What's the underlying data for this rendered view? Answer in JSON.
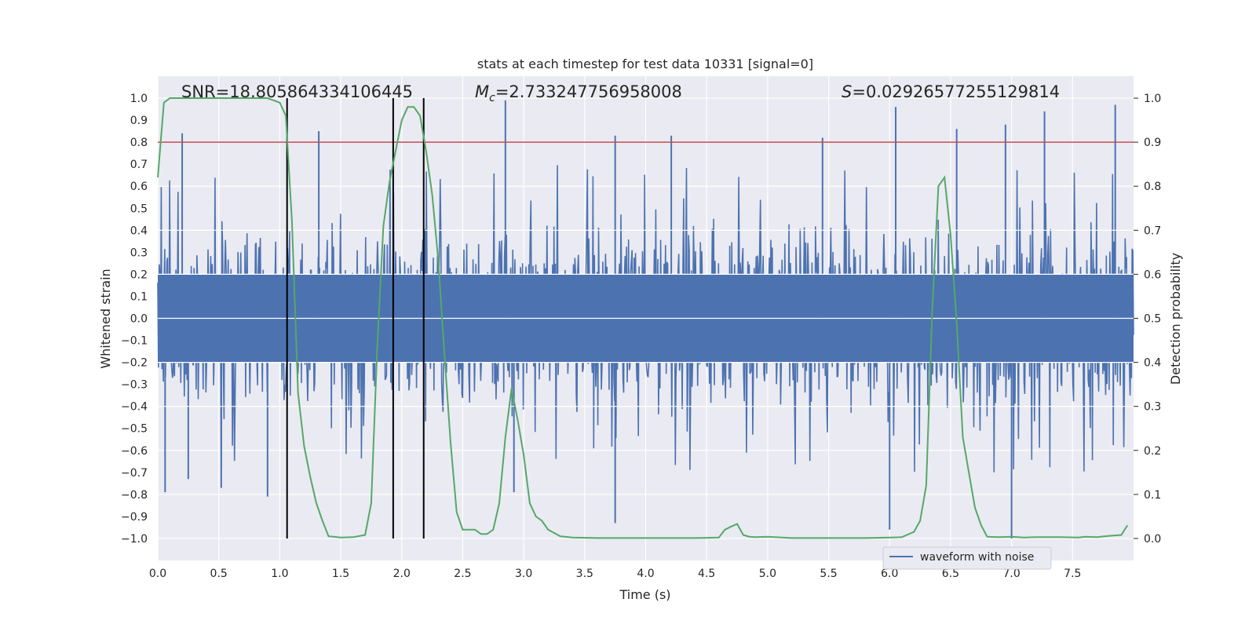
{
  "chart_data": {
    "type": "line",
    "title": "stats at each timestep for test data 10331 [signal=0]",
    "xlabel": "Time (s)",
    "ylabel_left": "Whitened strain",
    "ylabel_right": "Detection probability",
    "xlim": [
      0,
      8
    ],
    "ylim_left": [
      -1.1,
      1.1
    ],
    "ylim_right": [
      -0.05,
      1.05
    ],
    "x_ticks": [
      "0.0",
      "0.5",
      "1.0",
      "1.5",
      "2.0",
      "2.5",
      "3.0",
      "3.5",
      "4.0",
      "4.5",
      "5.0",
      "5.5",
      "6.0",
      "6.5",
      "7.0",
      "7.5"
    ],
    "y_ticks_left": [
      "1.0",
      "0.9",
      "0.8",
      "0.7",
      "0.6",
      "0.5",
      "0.4",
      "0.3",
      "0.2",
      "0.1",
      "0.0",
      "−0.1",
      "−0.2",
      "−0.3",
      "−0.4",
      "−0.5",
      "−0.6",
      "−0.7",
      "−0.8",
      "−0.9",
      "−1.0"
    ],
    "y_ticks_right": [
      "1.0",
      "0.9",
      "0.8",
      "0.7",
      "0.6",
      "0.5",
      "0.4",
      "0.3",
      "0.2",
      "0.1",
      "0.0"
    ],
    "grid": true,
    "annotations": {
      "snr": "SNR=18.805864334106445",
      "mc_symbol": "M",
      "mc_subscript": "c",
      "mc_value": "=2.733247756958008",
      "s_symbol": "S",
      "s_value": "=0.02926577255129814"
    },
    "legend": {
      "label": "waveform with noise",
      "placement": "lower-right"
    },
    "threshold": {
      "axis": "left",
      "y": 0.8,
      "color": "#c44e52"
    },
    "vertical_markers": [
      1.06,
      1.93,
      2.18
    ],
    "colors": {
      "waveform": "#4c72b0",
      "probability": "#55a868",
      "threshold": "#c44e52",
      "markers": "#000000",
      "background": "#eaeaf2"
    },
    "series": [
      {
        "name": "waveform with noise",
        "axis": "left",
        "noise_envelope": {
          "core_amplitude": 0.2,
          "typical_peak": 0.5,
          "max_peak": 1.0
        },
        "peaks": [
          {
            "x": 0.06,
            "y": -0.79
          },
          {
            "x": 0.2,
            "y": 0.84
          },
          {
            "x": 0.25,
            "y": -0.73
          },
          {
            "x": 0.52,
            "y": -0.77
          },
          {
            "x": 0.9,
            "y": -0.81
          },
          {
            "x": 1.32,
            "y": 0.85
          },
          {
            "x": 2.85,
            "y": 0.99
          },
          {
            "x": 2.92,
            "y": -0.79
          },
          {
            "x": 3.75,
            "y": -0.93
          },
          {
            "x": 3.75,
            "y": 0.83
          },
          {
            "x": 4.21,
            "y": 0.83
          },
          {
            "x": 5.45,
            "y": 0.82
          },
          {
            "x": 6.0,
            "y": -0.96
          },
          {
            "x": 6.05,
            "y": 0.96
          },
          {
            "x": 6.55,
            "y": 0.86
          },
          {
            "x": 6.95,
            "y": 0.88
          },
          {
            "x": 7.0,
            "y": -1.0
          },
          {
            "x": 7.27,
            "y": 0.94
          },
          {
            "x": 7.85,
            "y": 0.97
          }
        ]
      },
      {
        "name": "",
        "axis": "right",
        "x": [
          0.0,
          0.05,
          0.1,
          0.2,
          0.3,
          0.4,
          0.5,
          0.6,
          0.7,
          0.8,
          0.9,
          1.0,
          1.05,
          1.1,
          1.15,
          1.2,
          1.25,
          1.3,
          1.35,
          1.4,
          1.5,
          1.6,
          1.7,
          1.75,
          1.8,
          1.85,
          1.9,
          1.95,
          2.0,
          2.05,
          2.1,
          2.15,
          2.2,
          2.25,
          2.3,
          2.35,
          2.4,
          2.45,
          2.5,
          2.55,
          2.6,
          2.65,
          2.7,
          2.75,
          2.8,
          2.85,
          2.9,
          2.95,
          3.0,
          3.05,
          3.1,
          3.15,
          3.2,
          3.3,
          3.4,
          3.6,
          3.8,
          4.0,
          4.2,
          4.4,
          4.6,
          4.65,
          4.7,
          4.75,
          4.8,
          4.85,
          4.9,
          5.0,
          5.2,
          5.4,
          5.6,
          5.8,
          6.0,
          6.1,
          6.2,
          6.25,
          6.3,
          6.35,
          6.4,
          6.45,
          6.5,
          6.55,
          6.6,
          6.65,
          6.7,
          6.75,
          6.8,
          6.9,
          7.0,
          7.1,
          7.2,
          7.4,
          7.55,
          7.6,
          7.7,
          7.8,
          7.9,
          7.95
        ],
        "values": [
          0.82,
          0.99,
          1.0,
          1.0,
          1.0,
          1.0,
          1.0,
          1.0,
          1.0,
          1.0,
          1.0,
          0.99,
          0.96,
          0.72,
          0.33,
          0.21,
          0.14,
          0.08,
          0.04,
          0.005,
          0.002,
          0.003,
          0.008,
          0.08,
          0.44,
          0.71,
          0.81,
          0.88,
          0.95,
          0.98,
          0.98,
          0.96,
          0.88,
          0.78,
          0.63,
          0.42,
          0.22,
          0.06,
          0.02,
          0.02,
          0.02,
          0.01,
          0.01,
          0.02,
          0.08,
          0.23,
          0.34,
          0.27,
          0.19,
          0.08,
          0.05,
          0.04,
          0.02,
          0.005,
          0.002,
          0.001,
          0.001,
          0.001,
          0.001,
          0.001,
          0.002,
          0.02,
          0.027,
          0.033,
          0.008,
          0.004,
          0.003,
          0.004,
          0.001,
          0.001,
          0.001,
          0.001,
          0.002,
          0.003,
          0.015,
          0.04,
          0.12,
          0.52,
          0.8,
          0.82,
          0.69,
          0.49,
          0.23,
          0.15,
          0.07,
          0.03,
          0.004,
          0.003,
          0.004,
          0.002,
          0.003,
          0.003,
          0.002,
          0.004,
          0.003,
          0.006,
          0.008,
          0.03
        ]
      }
    ]
  }
}
